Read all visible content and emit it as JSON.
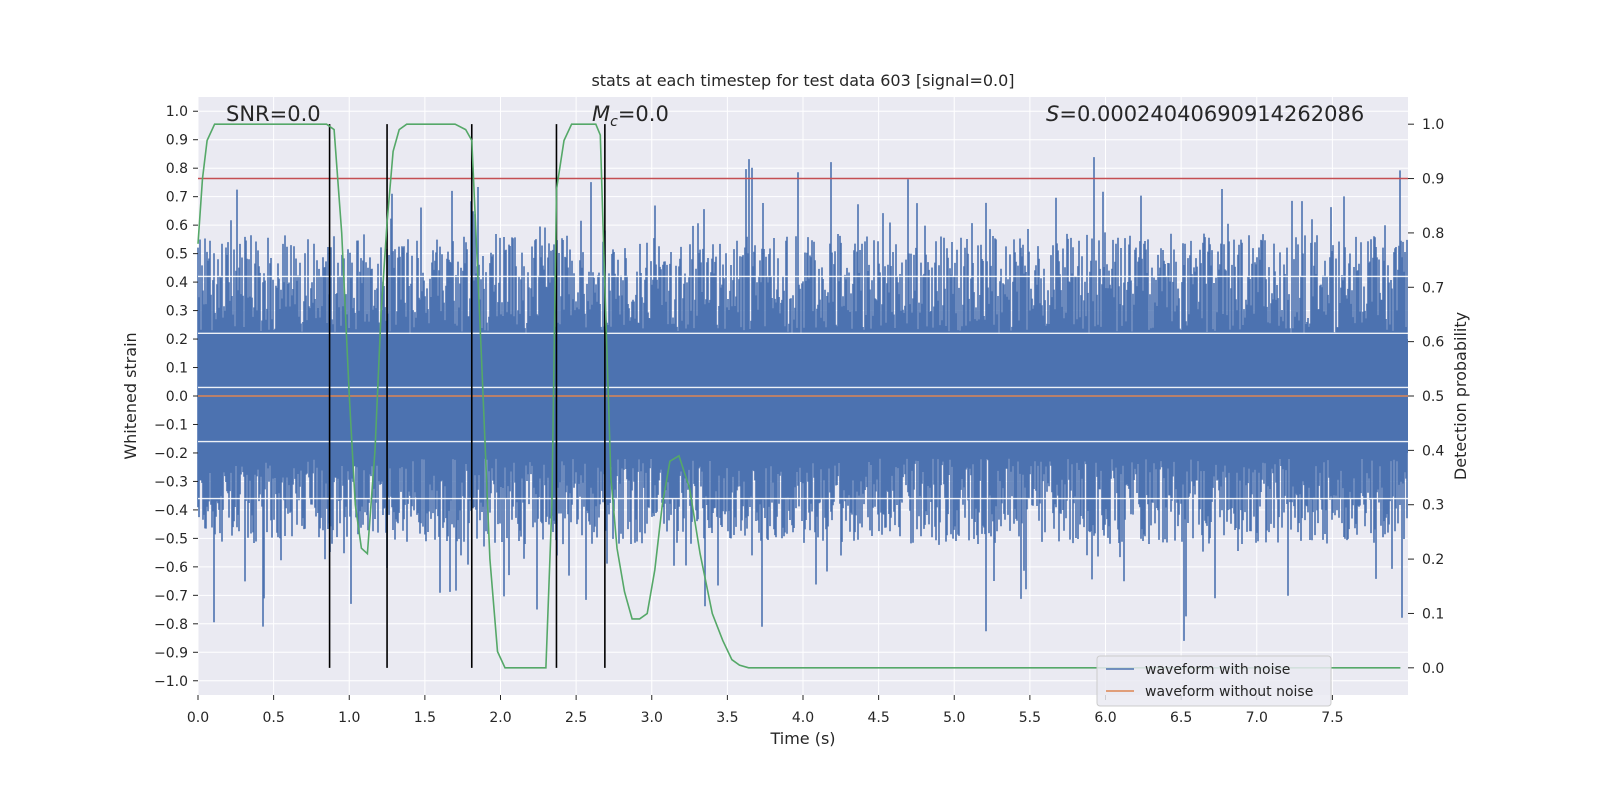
{
  "chart_data": {
    "type": "line",
    "title": "stats at each timestep for test data 603 [signal=0.0]",
    "xlabel": "Time (s)",
    "ylabel_left": "Whitened strain",
    "ylabel_right": "Detection probability",
    "xlim": [
      0.0,
      8.0
    ],
    "ylim_left": [
      -1.05,
      1.05
    ],
    "ylim_right": [
      -0.05,
      1.05
    ],
    "x_ticks": [
      "0.0",
      "0.5",
      "1.0",
      "1.5",
      "2.0",
      "2.5",
      "3.0",
      "3.5",
      "4.0",
      "4.5",
      "5.0",
      "5.5",
      "6.0",
      "6.5",
      "7.0",
      "7.5"
    ],
    "y_left_ticks": [
      "1.0",
      "0.9",
      "0.8",
      "0.7",
      "0.6",
      "0.5",
      "0.4",
      "0.3",
      "0.2",
      "0.1",
      "0.0",
      "−0.1",
      "−0.2",
      "−0.3",
      "−0.4",
      "−0.5",
      "−0.6",
      "−0.7",
      "−0.8",
      "−0.9",
      "−1.0"
    ],
    "y_right_ticks": [
      "1.0",
      "0.9",
      "0.8",
      "0.7",
      "0.6",
      "0.5",
      "0.4",
      "0.3",
      "0.2",
      "0.1",
      "0.0"
    ],
    "annotations": {
      "snr": "SNR=0.0",
      "mc_symbol": "M",
      "mc_sub": "c",
      "mc_value": "=0.0",
      "s_symbol": "S",
      "s_value": "=0.00024040690914262086"
    },
    "legend": [
      {
        "label": "waveform with noise",
        "color": "#4c72b0"
      },
      {
        "label": "waveform without noise",
        "color": "#dd8452"
      }
    ],
    "threshold_probability": 0.9,
    "detection_boundaries_s": [
      0.87,
      1.25,
      1.81,
      2.37,
      2.69
    ],
    "detection_probability": {
      "t": [
        0.0,
        0.03,
        0.06,
        0.11,
        0.2,
        0.4,
        0.6,
        0.75,
        0.85,
        0.9,
        0.95,
        1.0,
        1.04,
        1.08,
        1.12,
        1.17,
        1.21,
        1.25,
        1.29,
        1.33,
        1.38,
        1.44,
        1.55,
        1.7,
        1.77,
        1.81,
        1.87,
        1.93,
        1.98,
        2.03,
        2.09,
        2.15,
        2.25,
        2.3,
        2.34,
        2.37,
        2.42,
        2.47,
        2.52,
        2.58,
        2.63,
        2.66,
        2.69,
        2.73,
        2.77,
        2.82,
        2.87,
        2.92,
        2.97,
        3.02,
        3.07,
        3.12,
        3.18,
        3.25,
        3.32,
        3.4,
        3.47,
        3.53,
        3.58,
        3.64,
        3.8,
        4.5,
        5.5,
        6.5,
        7.5,
        7.95
      ],
      "p": [
        0.78,
        0.9,
        0.97,
        1.0,
        1.0,
        1.0,
        1.0,
        1.0,
        1.0,
        0.99,
        0.8,
        0.5,
        0.3,
        0.22,
        0.21,
        0.4,
        0.65,
        0.82,
        0.95,
        0.99,
        1.0,
        1.0,
        1.0,
        1.0,
        0.99,
        0.97,
        0.6,
        0.2,
        0.03,
        0.0,
        0.0,
        0.0,
        0.0,
        0.0,
        0.3,
        0.88,
        0.97,
        1.0,
        1.0,
        1.0,
        1.0,
        0.98,
        0.7,
        0.35,
        0.22,
        0.14,
        0.09,
        0.09,
        0.1,
        0.18,
        0.3,
        0.38,
        0.39,
        0.33,
        0.21,
        0.1,
        0.05,
        0.015,
        0.005,
        0.0,
        0.0,
        0.0,
        0.0,
        0.0,
        0.0,
        0.0
      ]
    },
    "series": [
      {
        "name": "waveform with noise",
        "note": "dense noise, roughly -0.9 to 0.98"
      },
      {
        "name": "waveform without noise",
        "value": 0.0
      }
    ]
  }
}
